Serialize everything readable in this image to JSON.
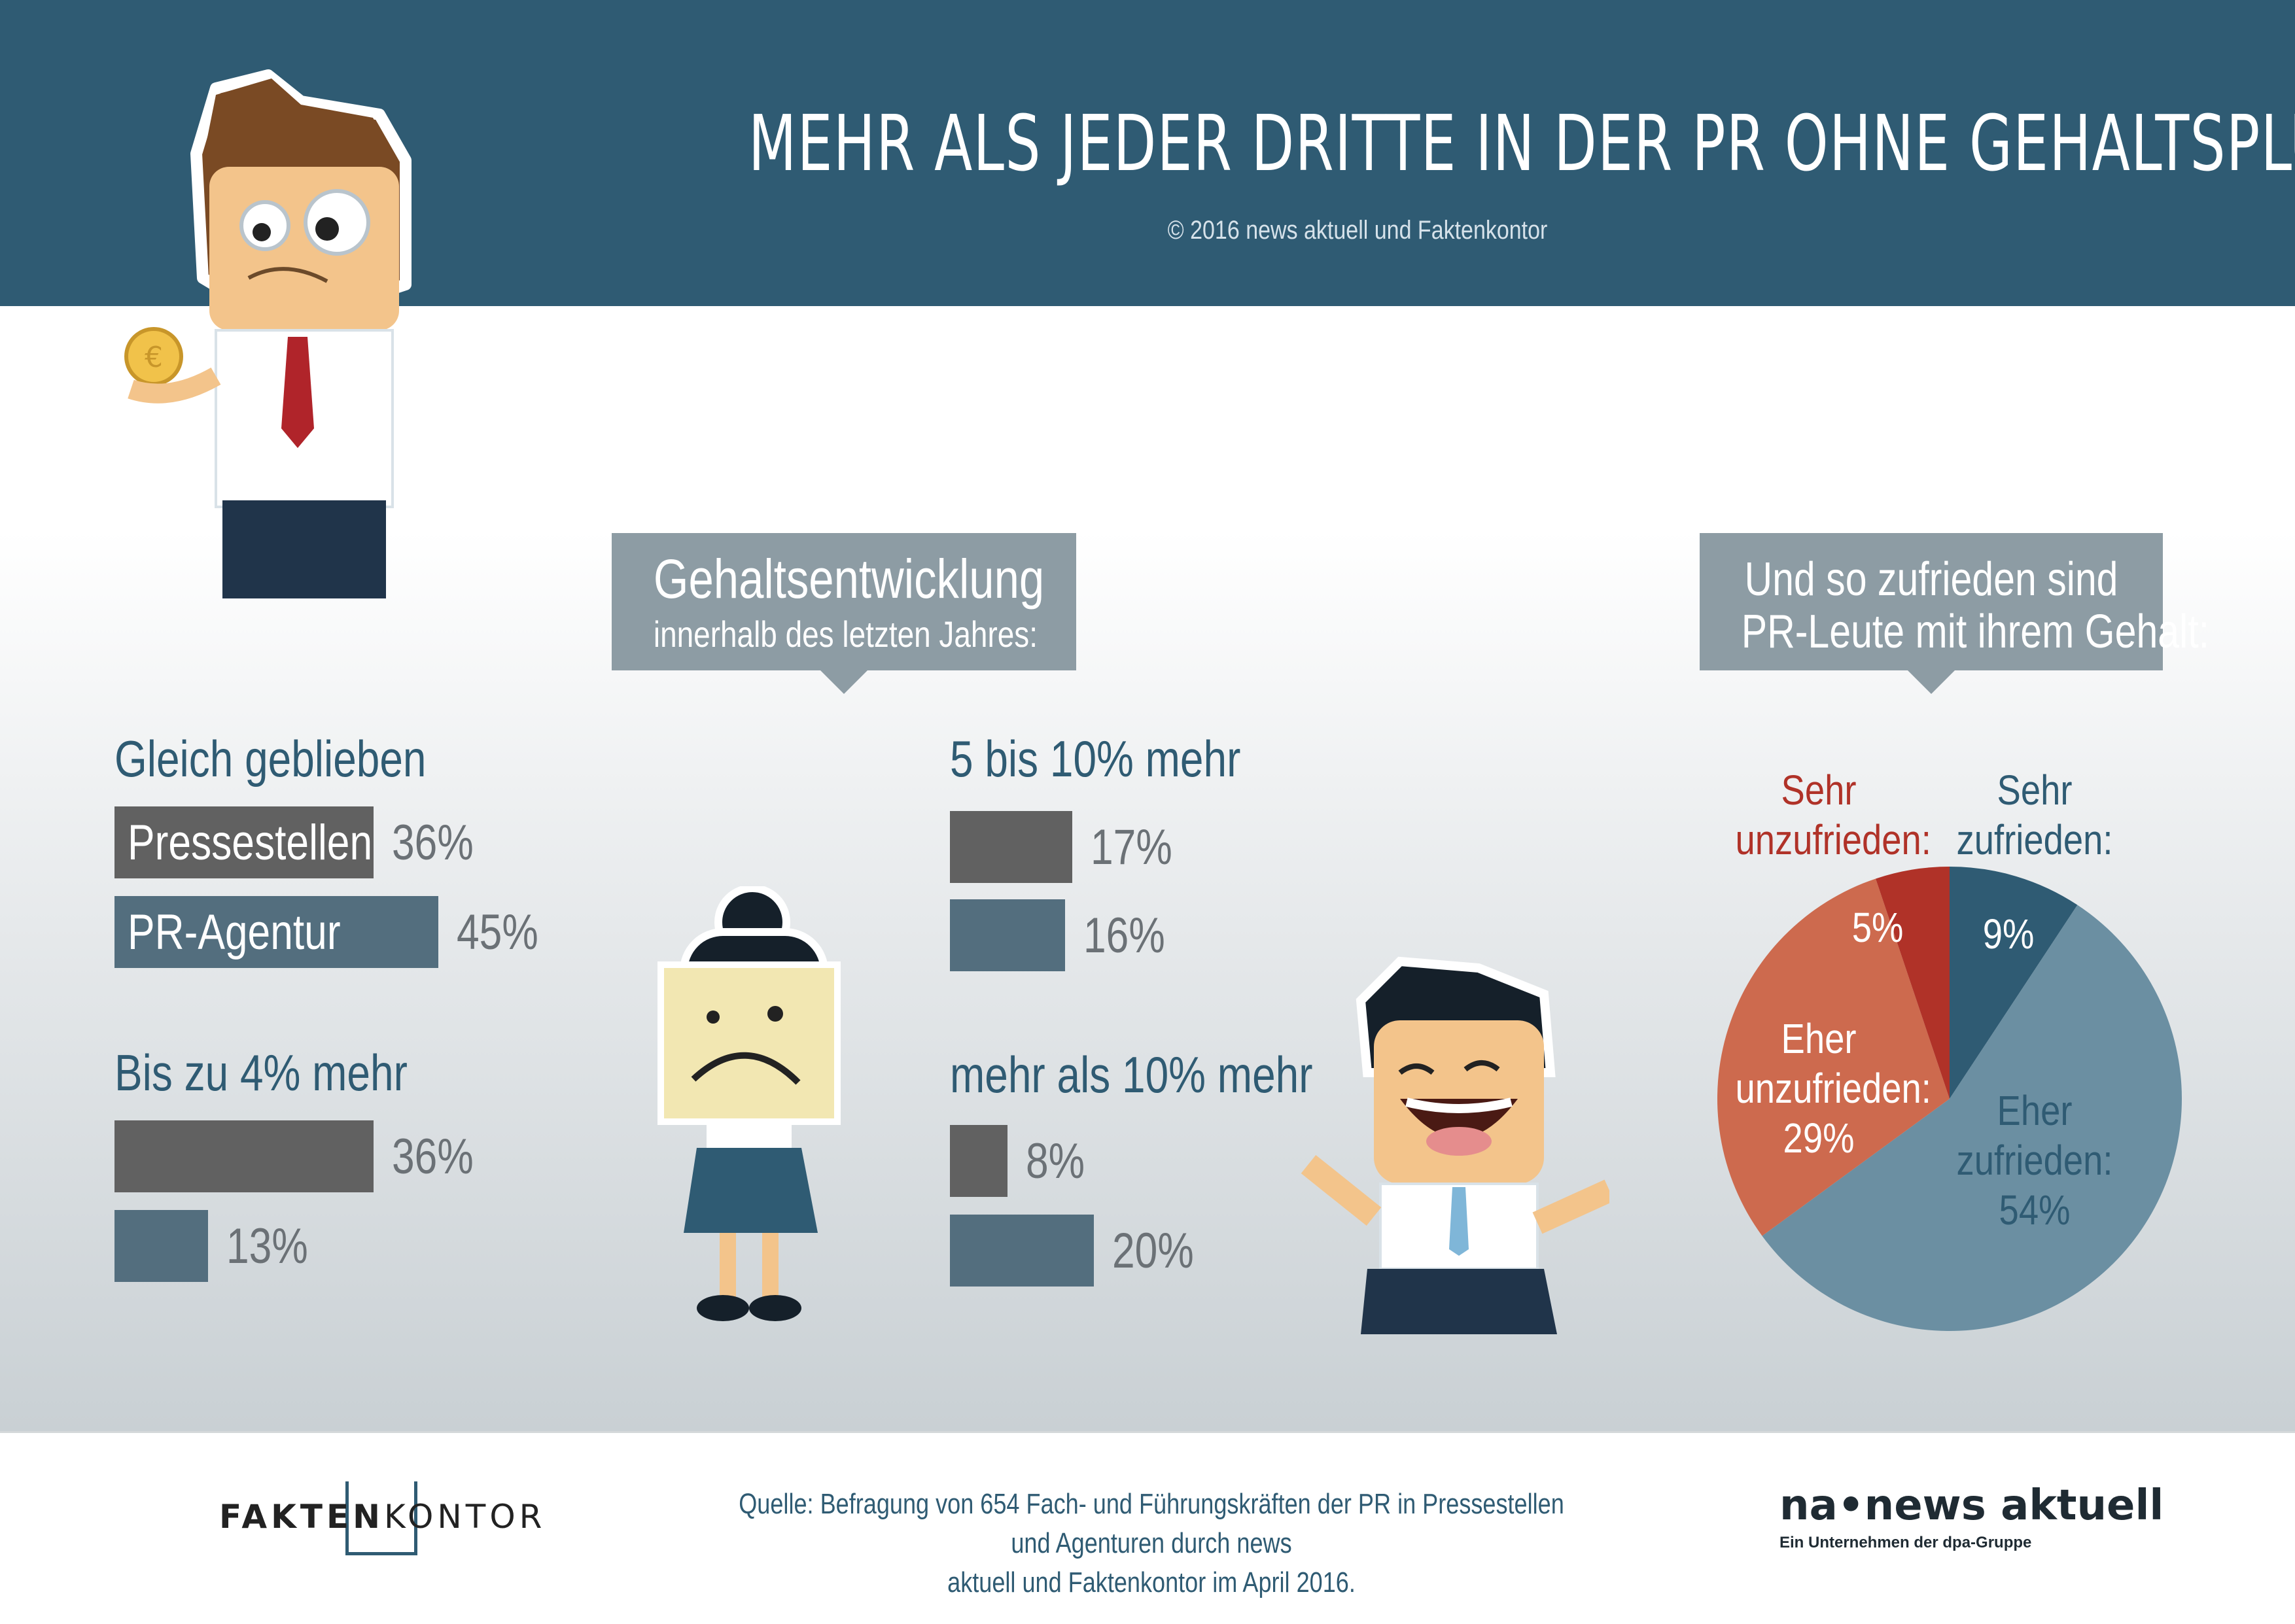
{
  "header": {
    "title": "MEHR ALS JEDER DRITTE IN DER PR OHNE GEHALTSPLUS",
    "copyright": "© 2016 news aktuell und Faktenkontor"
  },
  "callouts": {
    "development_line1": "Gehaltsentwicklung",
    "development_line2": "innerhalb des letzten Jahres:",
    "satisfaction_line1": "Und so zufrieden sind",
    "satisfaction_line2": "PR-Leute mit ihrem Gehalt:"
  },
  "colors": {
    "header": "#2f5b73",
    "pressestellen": "#616161",
    "pr_agentur": "#536e7e",
    "sehr_zufrieden": "#2f5b73",
    "eher_zufrieden": "#6b8fa2",
    "eher_unzufrieden": "#cd6a4e",
    "sehr_unzufrieden": "#b03228"
  },
  "chart_data": [
    {
      "type": "bar",
      "orientation": "horizontal",
      "series": [
        {
          "name": "Pressestellen"
        },
        {
          "name": "PR-Agentur"
        }
      ],
      "groups": [
        {
          "title": "Gleich geblieben",
          "values": [
            36,
            45
          ],
          "labels": [
            "36%",
            "45%"
          ]
        },
        {
          "title": "Bis zu 4% mehr",
          "values": [
            36,
            13
          ],
          "labels": [
            "36%",
            "13%"
          ]
        },
        {
          "title": "5 bis 10% mehr",
          "values": [
            17,
            16
          ],
          "labels": [
            "17%",
            "16%"
          ]
        },
        {
          "title": "mehr als 10% mehr",
          "values": [
            8,
            20
          ],
          "labels": [
            "8%",
            "20%"
          ]
        }
      ]
    },
    {
      "type": "pie",
      "slices": [
        {
          "name_line1": "Sehr",
          "name_line2": "zufrieden:",
          "value": 9,
          "label": "9%"
        },
        {
          "name_line1": "Eher",
          "name_line2": "zufrieden:",
          "value": 54,
          "label": "54%"
        },
        {
          "name_line1": "Eher",
          "name_line2": "unzufrieden:",
          "value": 29,
          "label": "29%"
        },
        {
          "name_line1": "Sehr",
          "name_line2": "unzufrieden:",
          "value": 5,
          "label": "5%"
        }
      ]
    }
  ],
  "footer": {
    "source_line1": "Quelle: Befragung von 654 Fach- und Führungskräften der PR in Pressestellen und Agenturen durch news",
    "source_line2": "aktuell und Faktenkontor im April 2016.",
    "logo_left_bold": "FAKTEN",
    "logo_left_rest": "KONTOR",
    "logo_right": "na•news aktuell",
    "logo_right_sub": "Ein Unternehmen der dpa-Gruppe"
  }
}
